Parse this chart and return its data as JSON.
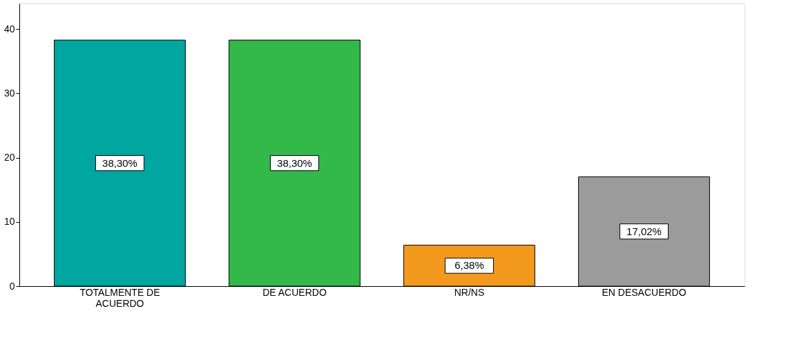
{
  "chart_data": {
    "type": "bar",
    "categories": [
      "TOTALMENTE  DE ACUERDO",
      "DE ACUERDO",
      "NR/NS",
      "EN DESACUERDO"
    ],
    "values": [
      38.3,
      38.3,
      6.38,
      17.02
    ],
    "colors": [
      "#00a6a0",
      "#33b84a",
      "#f39a1e",
      "#9b9b9b"
    ],
    "value_labels": [
      "38,30%",
      "38,30%",
      "6,38%",
      "17,02%"
    ],
    "ylim": [
      0,
      44
    ],
    "yticks": [
      0,
      10,
      20,
      30,
      40
    ],
    "grid": false
  }
}
